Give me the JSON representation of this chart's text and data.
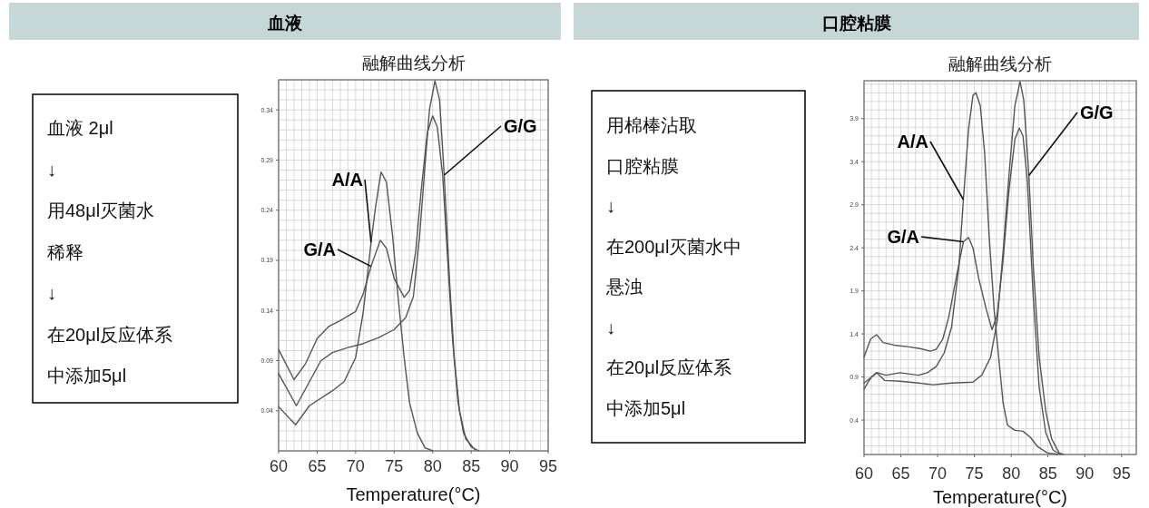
{
  "chart_data": [
    {
      "type": "other",
      "title": "血液",
      "annotations": [
        "血液 2μl",
        "↓",
        "用48μl灭菌水",
        "稀释",
        "↓",
        "在20μl反应体系",
        "中添加5μl"
      ]
    },
    {
      "type": "line",
      "title": "融解曲线分析",
      "xlabel": "Temperature(°C)",
      "xlim": [
        60,
        95
      ],
      "ylim": [
        0,
        0.37
      ],
      "xticks": [
        60,
        65,
        70,
        75,
        80,
        85,
        90,
        95
      ],
      "yticks": [
        0.04,
        0.09,
        0.14,
        0.19,
        0.24,
        0.29,
        0.34
      ],
      "grid": true,
      "series": [
        {
          "name": "A/A",
          "color": "#555555",
          "x": [
            60,
            62.2,
            64,
            67,
            68.5,
            70,
            71,
            72,
            72.6,
            73.3,
            74,
            74.8,
            75.5,
            76.3,
            77,
            78,
            79,
            80
          ],
          "values": [
            0.044,
            0.026,
            0.045,
            0.06,
            0.069,
            0.093,
            0.139,
            0.208,
            0.244,
            0.278,
            0.268,
            0.214,
            0.154,
            0.093,
            0.048,
            0.018,
            0.003,
            0
          ]
        },
        {
          "name": "G/A",
          "color": "#555555",
          "x": [
            60,
            62,
            63.5,
            65,
            66.5,
            68,
            70,
            71,
            72,
            73.2,
            74,
            75,
            76.3,
            77,
            77.8,
            78.5,
            79.3,
            80,
            80.6,
            81.3,
            82,
            82.6,
            83.3,
            84,
            85,
            86
          ],
          "values": [
            0.101,
            0.071,
            0.087,
            0.112,
            0.124,
            0.13,
            0.139,
            0.157,
            0.184,
            0.21,
            0.202,
            0.172,
            0.153,
            0.16,
            0.199,
            0.259,
            0.317,
            0.334,
            0.323,
            0.275,
            0.184,
            0.109,
            0.048,
            0.018,
            0.004,
            0
          ]
        },
        {
          "name": "G/G",
          "color": "#555555",
          "x": [
            60,
            62.3,
            64,
            65.5,
            67,
            69,
            71,
            73,
            75,
            76.5,
            77.5,
            78.3,
            79,
            79.6,
            80.3,
            80.9,
            81.5,
            82.2,
            82.8,
            83.5,
            84.3,
            85.5
          ],
          "values": [
            0.077,
            0.045,
            0.069,
            0.09,
            0.098,
            0.103,
            0.107,
            0.113,
            0.121,
            0.133,
            0.154,
            0.214,
            0.284,
            0.341,
            0.369,
            0.35,
            0.275,
            0.169,
            0.093,
            0.039,
            0.012,
            0.001
          ]
        }
      ]
    },
    {
      "type": "other",
      "title": "口腔粘膜",
      "annotations": [
        "用棉棒沾取",
        "口腔粘膜",
        "↓",
        "在200μl灭菌水中",
        "悬浊",
        "↓",
        "在20μl反应体系",
        "中添加5μl"
      ]
    },
    {
      "type": "line",
      "title": "融解曲线分析",
      "xlabel": "Temperature(°C)",
      "xlim": [
        60,
        97
      ],
      "ylim": [
        0,
        4.34
      ],
      "xticks": [
        60,
        65,
        70,
        75,
        80,
        85,
        90,
        95
      ],
      "yticks": [
        0.4,
        0.9,
        1.4,
        1.9,
        2.4,
        2.9,
        3.4,
        3.9
      ],
      "grid": true,
      "series": [
        {
          "name": "A/A",
          "color": "#555555",
          "x": [
            60,
            61.8,
            63,
            64.9,
            67.4,
            68.6,
            69.8,
            70.9,
            71.9,
            72.9,
            73.5,
            74.2,
            74.8,
            75.2,
            75.8,
            76.4,
            77,
            77.7,
            78.3,
            78.9,
            79.5,
            80.5,
            81.6,
            82.6,
            83.6,
            84.9,
            86.3
          ],
          "values": [
            0.83,
            0.95,
            0.92,
            0.95,
            0.92,
            0.95,
            1.02,
            1.18,
            1.48,
            2.19,
            2.96,
            3.77,
            4.17,
            4.2,
            4.05,
            3.49,
            2.54,
            1.66,
            1.13,
            0.6,
            0.34,
            0.28,
            0.27,
            0.2,
            0.09,
            0.02,
            0
          ]
        },
        {
          "name": "G/A",
          "color": "#555555",
          "x": [
            60,
            60.9,
            61.7,
            62.6,
            64.1,
            66.1,
            67.6,
            69,
            69.8,
            70.7,
            71.5,
            72.5,
            73.5,
            74.2,
            74.8,
            75.6,
            76.6,
            77.4,
            78.1,
            78.9,
            79.7,
            80.5,
            81.1,
            81.6,
            82.2,
            83,
            83.8,
            84.7,
            85.7,
            86.7
          ],
          "values": [
            1.13,
            1.34,
            1.39,
            1.3,
            1.27,
            1.25,
            1.23,
            1.2,
            1.22,
            1.34,
            1.59,
            2.04,
            2.47,
            2.52,
            2.4,
            2.04,
            1.69,
            1.45,
            1.62,
            2.26,
            3.07,
            3.66,
            3.79,
            3.7,
            3.17,
            1.83,
            0.78,
            0.25,
            0.05,
            0
          ]
        },
        {
          "name": "G/G",
          "color": "#555555",
          "x": [
            60,
            61,
            61.7,
            62.8,
            64.9,
            67.4,
            69.4,
            71.9,
            74.8,
            76,
            77.2,
            78.1,
            78.9,
            79.7,
            80.5,
            81.2,
            81.7,
            82.4,
            83,
            83.8,
            84.7,
            85.5,
            86.5,
            87.1
          ],
          "values": [
            0.76,
            0.9,
            0.95,
            0.86,
            0.85,
            0.83,
            0.81,
            0.83,
            0.84,
            0.92,
            1.13,
            1.55,
            2.36,
            3.24,
            4.05,
            4.33,
            4.12,
            3.24,
            2.19,
            1.13,
            0.5,
            0.18,
            0.02,
            0
          ]
        }
      ]
    }
  ]
}
